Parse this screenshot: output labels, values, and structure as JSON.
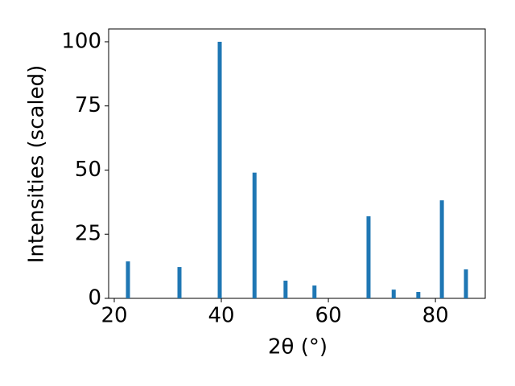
{
  "chart_data": {
    "type": "bar",
    "xlabel": "2θ (°)",
    "ylabel": "Intensities (scaled)",
    "x": [
      22.56,
      32.18,
      39.7,
      46.2,
      52.0,
      57.4,
      67.5,
      72.2,
      76.8,
      81.2,
      85.7
    ],
    "values": [
      14.4,
      12.2,
      100,
      49,
      6.9,
      5.0,
      32,
      3.4,
      2.5,
      38.2,
      11.3
    ],
    "color": "#1f77b4",
    "xlim": [
      18.95,
      89.3
    ],
    "ylim": [
      0,
      105
    ],
    "xticks": [
      20,
      40,
      60,
      80
    ],
    "yticks": [
      0,
      25,
      50,
      75,
      100
    ]
  }
}
